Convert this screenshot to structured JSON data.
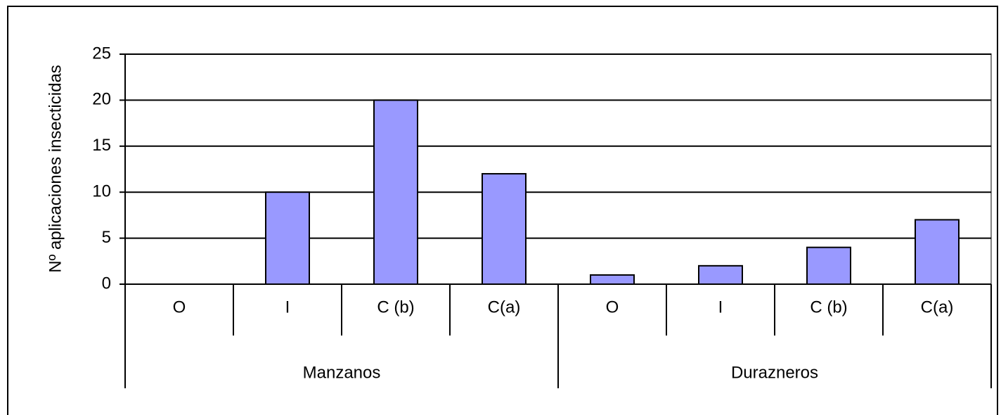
{
  "chart_data": {
    "type": "bar",
    "y_label": "Nº aplicaciones insecticidas",
    "groups": [
      {
        "name": "Manzanos",
        "categories": [
          "O",
          "I",
          "C (b)",
          "C(a)"
        ],
        "values": [
          0,
          10,
          20,
          12
        ]
      },
      {
        "name": "Durazneros",
        "categories": [
          "O",
          "I",
          "C (b)",
          "C(a)"
        ],
        "values": [
          1,
          2,
          4,
          7
        ]
      }
    ],
    "color": "#9999ff",
    "ylim": [
      0,
      25
    ],
    "yticks": [
      0,
      5,
      10,
      15,
      20,
      25
    ],
    "grid": true
  }
}
